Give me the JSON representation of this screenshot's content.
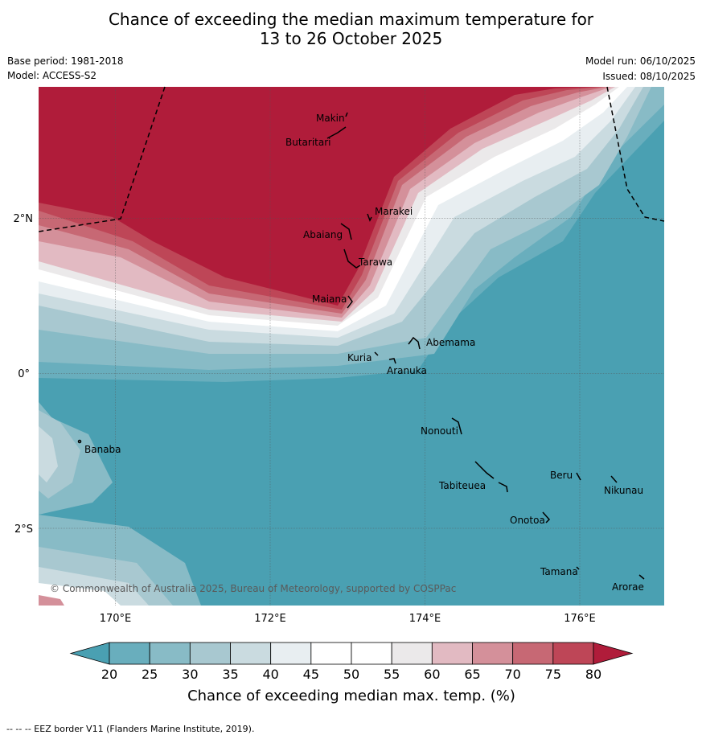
{
  "title_line1": "Chance of exceeding the median maximum temperature for",
  "title_line2": "13 to 26 October 2025",
  "base_period": "Base period: 1981-2018",
  "model": "Model: ACCESS-S2",
  "model_run": "Model run: 06/10/2025",
  "issued": "Issued: 08/10/2025",
  "copyright": "© Commonwealth of Australia 2025, Bureau of Meteorology, supported by COSPPac",
  "lon_labels": [
    "170°E",
    "172°E",
    "174°E",
    "176°E"
  ],
  "lat_labels": [
    "2°N",
    "0°",
    "2°S"
  ],
  "islands": [
    "Makin",
    "Butaritari",
    "Marakei",
    "Abaiang",
    "Tarawa",
    "Maiana",
    "Abemama",
    "Kuria",
    "Aranuka",
    "Nonouti",
    "Banaba",
    "Beru",
    "Nikunau",
    "Tabiteuea",
    "Onotoa",
    "Tamana",
    "Arorae"
  ],
  "colorbar": {
    "title": "Chance of exceeding median max. temp. (%)",
    "ticks": [
      "20",
      "25",
      "30",
      "35",
      "40",
      "45",
      "50",
      "55",
      "60",
      "65",
      "70",
      "75",
      "80"
    ],
    "colors": [
      "#4aa0b2",
      "#69aebd",
      "#88bbc6",
      "#a8c8d0",
      "#cadbe0",
      "#e8eef1",
      "#ffffff",
      "#ffffff",
      "#ebe9ea",
      "#e2bac2",
      "#d4909a",
      "#c76874",
      "#be4657",
      "#b01c3a"
    ]
  },
  "footer": "--  --  -- EEZ border V11 (Flanders Marine Institute, 2019)."
}
